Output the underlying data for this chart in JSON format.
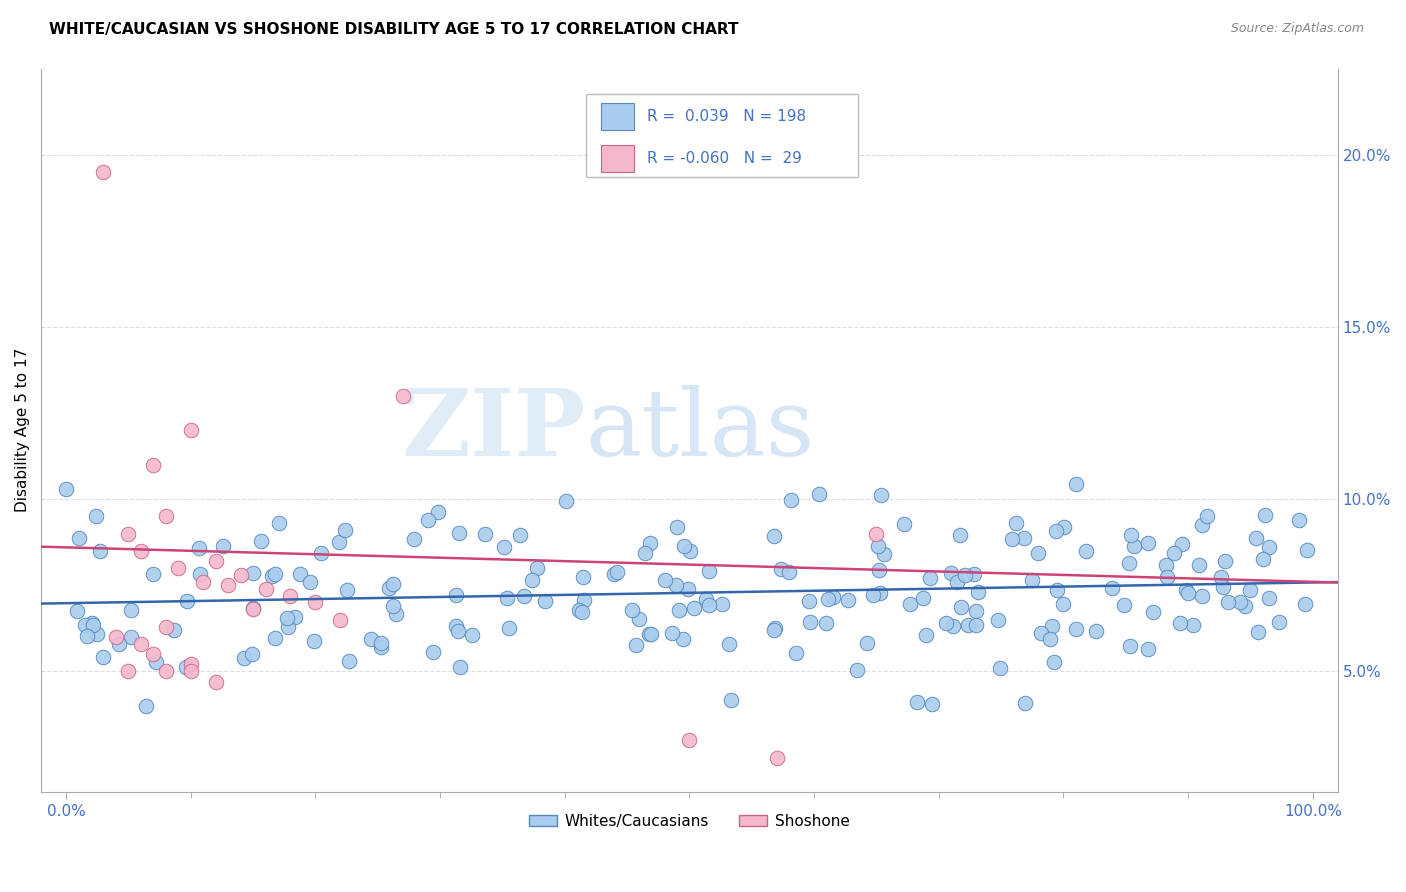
{
  "title": "WHITE/CAUCASIAN VS SHOSHONE DISABILITY AGE 5 TO 17 CORRELATION CHART",
  "source": "Source: ZipAtlas.com",
  "ylabel": "Disability Age 5 to 17",
  "ytick_labels": [
    "5.0%",
    "10.0%",
    "15.0%",
    "20.0%"
  ],
  "ytick_values": [
    0.05,
    0.1,
    0.15,
    0.2
  ],
  "xlim": [
    -0.02,
    1.02
  ],
  "ylim": [
    0.015,
    0.225
  ],
  "legend_label1": "Whites/Caucasians",
  "legend_label2": "Shoshone",
  "r1": 0.039,
  "n1": 198,
  "r2": -0.06,
  "n2": 29,
  "color_blue": "#aaccee",
  "color_pink": "#f4b8cc",
  "edge_color_blue": "#5588bb",
  "edge_color_pink": "#cc6688",
  "line_color_blue": "#3366aa",
  "line_color_pink": "#cc4477",
  "watermark_zip": "ZIP",
  "watermark_atlas": "atlas",
  "text_color": "#4472c4",
  "grid_color": "#dddddd",
  "title_fontsize": 11,
  "source_fontsize": 9,
  "tick_fontsize": 11,
  "ylabel_fontsize": 11
}
